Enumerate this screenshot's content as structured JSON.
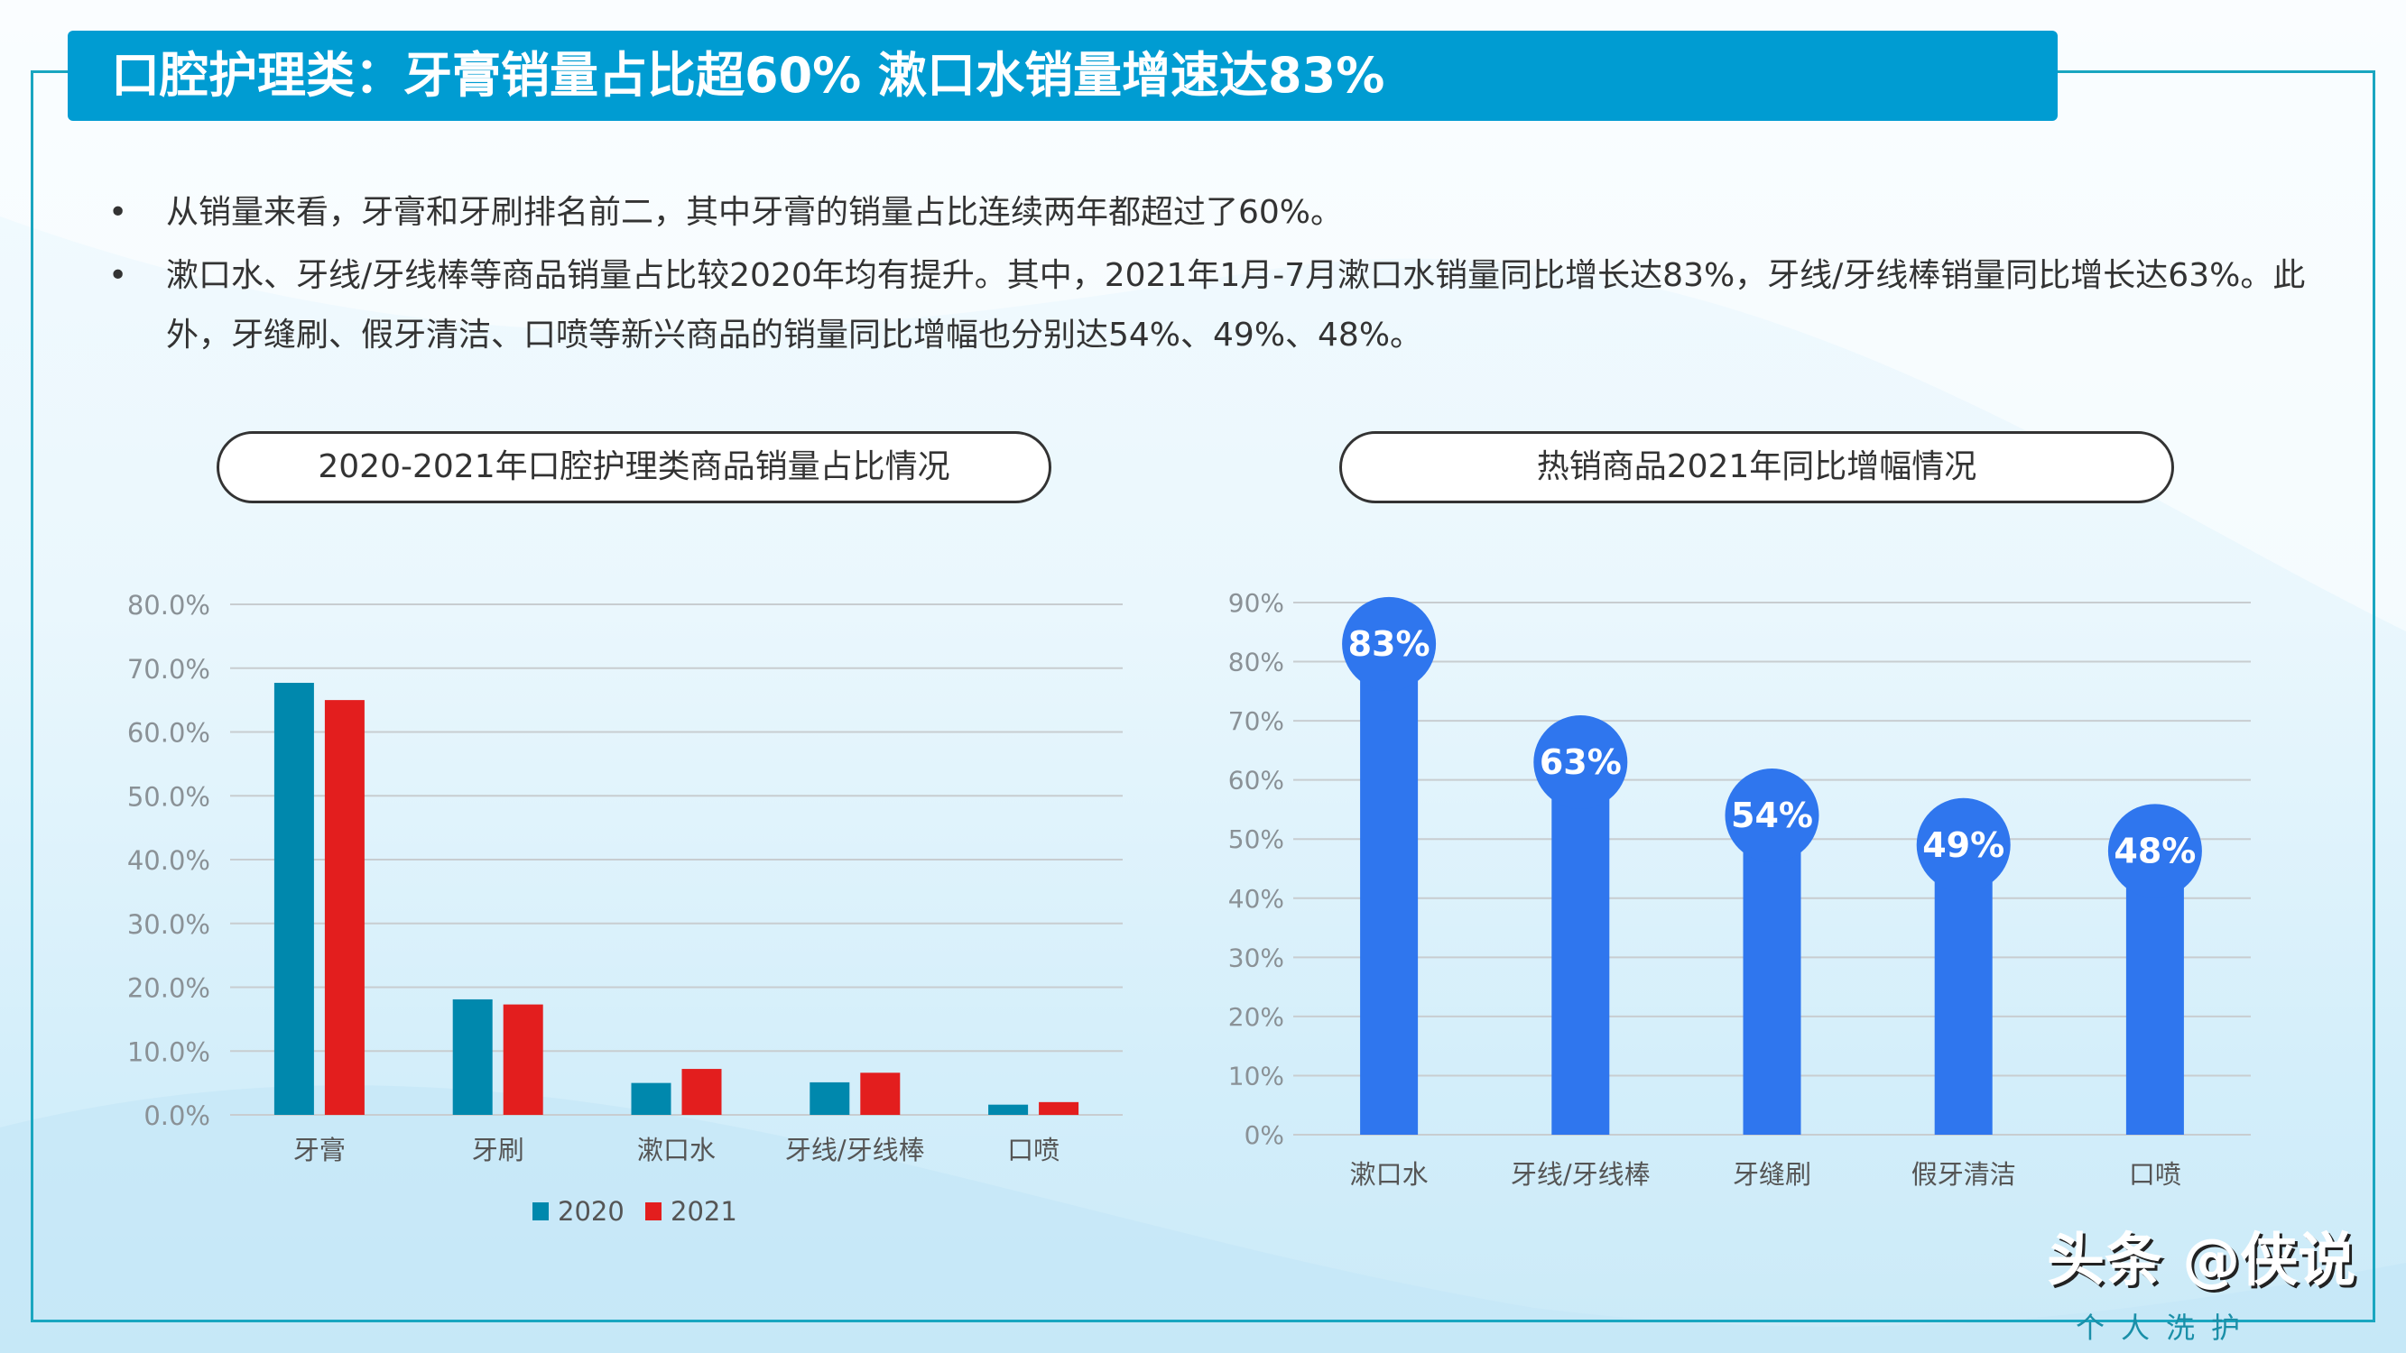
{
  "title": "口腔护理类：牙膏销量占比超60%  漱口水销量增速达83%",
  "bullets": [
    "从销量来看，牙膏和牙刷排名前二，其中牙膏的销量占比连续两年都超过了60%。",
    "漱口水、牙线/牙线棒等商品销量占比较2020年均有提升。其中，2021年1月-7月漱口水销量同比增长达83%，牙线/牙线棒销量同比增长达63%。此外，牙缝刷、假牙清洁、口喷等新兴商品的销量同比增幅也分别达54%、49%、48%。"
  ],
  "bullet_symbol": "•",
  "watermark": {
    "main": "头条 @侠说",
    "sub": "个人洗护"
  },
  "colors": {
    "title_bg": "#009cd2",
    "s2020": "#0088ad",
    "s2021": "#e31e1e",
    "growth": "#2f76ee"
  },
  "chart_data": [
    {
      "type": "bar",
      "title": "2020-2021年口腔护理类商品销量占比情况",
      "categories": [
        "牙膏",
        "牙刷",
        "漱口水",
        "牙线/牙线棒",
        "口喷"
      ],
      "series": [
        {
          "name": "2020",
          "values": [
            67.7,
            18.1,
            5.0,
            5.1,
            1.6
          ]
        },
        {
          "name": "2021",
          "values": [
            65.0,
            17.3,
            7.2,
            6.6,
            2.0
          ]
        }
      ],
      "ylim": [
        0,
        80
      ],
      "yticks": [
        "0.0%",
        "10.0%",
        "20.0%",
        "30.0%",
        "40.0%",
        "50.0%",
        "60.0%",
        "70.0%",
        "80.0%"
      ],
      "grid": true,
      "legend": "bottom"
    },
    {
      "type": "bar",
      "title": "热销商品2021年同比增幅情况",
      "categories": [
        "漱口水",
        "牙线/牙线棒",
        "牙缝刷",
        "假牙清洁",
        "口喷"
      ],
      "values": [
        83,
        63,
        54,
        49,
        48
      ],
      "data_labels": [
        "83%",
        "63%",
        "54%",
        "49%",
        "48%"
      ],
      "ylim": [
        0,
        90
      ],
      "yticks": [
        "0%",
        "10%",
        "20%",
        "30%",
        "40%",
        "50%",
        "60%",
        "70%",
        "80%",
        "90%"
      ],
      "grid": true
    }
  ]
}
